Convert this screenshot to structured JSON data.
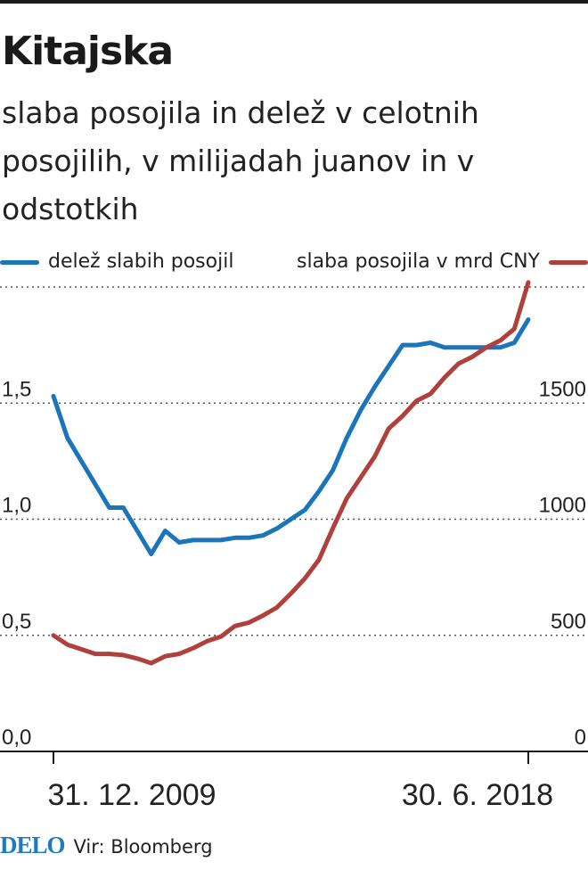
{
  "title": "Kitajska",
  "subtitle": "slaba posojila in delež v celotnih posojilih, v milijadah juanov in v odstotkih",
  "footer": {
    "logo": "DELO",
    "source": "Vir: Bloomberg"
  },
  "colors": {
    "share": "#1b75bb",
    "loans": "#b0403c",
    "text": "#1a1a1a"
  },
  "chart_data": {
    "type": "line",
    "title": "Kitajska",
    "subtitle": "slaba posojila in delež v celotnih posojilih, v milijadah juanov in v odstotkih",
    "legend_position": "top",
    "grid": "dotted horizontal",
    "x_tick_labels": [
      "31. 12. 2009",
      "30. 6. 2018"
    ],
    "y_left": {
      "ticks": [
        "0,0",
        "0,5",
        "1,0",
        "1,5"
      ],
      "range": [
        0,
        2.0
      ]
    },
    "y_right": {
      "ticks": [
        "0",
        "500",
        "1000",
        "1500"
      ],
      "range": [
        0,
        2000
      ]
    },
    "series": [
      {
        "name": "delež slabih posojil",
        "axis": "left",
        "color": "#1b75bb",
        "values": [
          1.53,
          1.35,
          1.25,
          1.15,
          1.05,
          1.05,
          0.95,
          0.85,
          0.95,
          0.9,
          0.91,
          0.91,
          0.91,
          0.92,
          0.92,
          0.93,
          0.96,
          1.0,
          1.04,
          1.12,
          1.21,
          1.35,
          1.47,
          1.57,
          1.66,
          1.75,
          1.75,
          1.76,
          1.74,
          1.74,
          1.74,
          1.74,
          1.74,
          1.76,
          1.86
        ]
      },
      {
        "name": "slaba posojila v mrd CNY",
        "axis": "right",
        "color": "#b0403c",
        "values": [
          500,
          460,
          440,
          420,
          420,
          415,
          400,
          380,
          410,
          420,
          445,
          475,
          495,
          540,
          555,
          585,
          620,
          680,
          745,
          825,
          960,
          1090,
          1180,
          1270,
          1390,
          1445,
          1510,
          1540,
          1610,
          1670,
          1700,
          1740,
          1770,
          1820,
          2020
        ]
      }
    ]
  }
}
